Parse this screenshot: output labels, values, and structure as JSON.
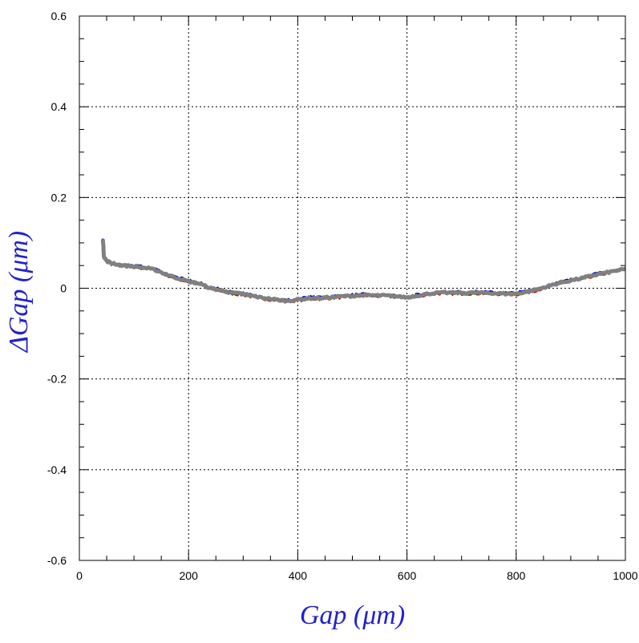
{
  "chart_data": {
    "type": "line",
    "title": "",
    "xlabel": "Gap  (μm)",
    "ylabel": "ΔGap  (μm)",
    "xlim": [
      0,
      1000
    ],
    "ylim": [
      -0.6,
      0.6
    ],
    "x_ticks": [
      0,
      200,
      400,
      600,
      800,
      1000
    ],
    "x_tick_labels": [
      "0",
      "200",
      "400",
      "600",
      "800",
      "1000"
    ],
    "y_ticks": [
      -0.6,
      -0.4,
      -0.2,
      0,
      0.2,
      0.4,
      0.6
    ],
    "y_tick_labels": [
      "-0.6",
      "-0.4",
      "-0.2",
      "0",
      "0.2",
      "0.4",
      "0.6"
    ],
    "grid": true,
    "legend": "none",
    "label_color": "#2222cc",
    "series": [
      {
        "color": "#808080",
        "x": [
          43,
          45,
          50,
          60,
          80,
          100,
          120,
          140,
          160,
          180,
          200,
          220,
          240,
          260,
          280,
          300,
          320,
          340,
          360,
          380,
          400,
          420,
          440,
          460,
          480,
          500,
          520,
          540,
          560,
          580,
          600,
          620,
          640,
          660,
          680,
          700,
          720,
          740,
          760,
          780,
          800,
          820,
          840,
          860,
          880,
          900,
          920,
          940,
          960,
          980,
          1000
        ],
        "y": [
          0.11,
          0.07,
          0.06,
          0.055,
          0.05,
          0.048,
          0.045,
          0.04,
          0.03,
          0.022,
          0.015,
          0.01,
          0.0,
          -0.005,
          -0.01,
          -0.013,
          -0.018,
          -0.022,
          -0.025,
          -0.028,
          -0.025,
          -0.022,
          -0.022,
          -0.02,
          -0.018,
          -0.017,
          -0.015,
          -0.016,
          -0.016,
          -0.018,
          -0.02,
          -0.016,
          -0.012,
          -0.01,
          -0.01,
          -0.01,
          -0.01,
          -0.01,
          -0.011,
          -0.012,
          -0.012,
          -0.008,
          -0.002,
          0.005,
          0.012,
          0.017,
          0.022,
          0.028,
          0.033,
          0.038,
          0.042
        ]
      },
      {
        "color": "#cc0000"
      },
      {
        "color": "#00aa00"
      },
      {
        "color": "#0000cc"
      }
    ]
  }
}
